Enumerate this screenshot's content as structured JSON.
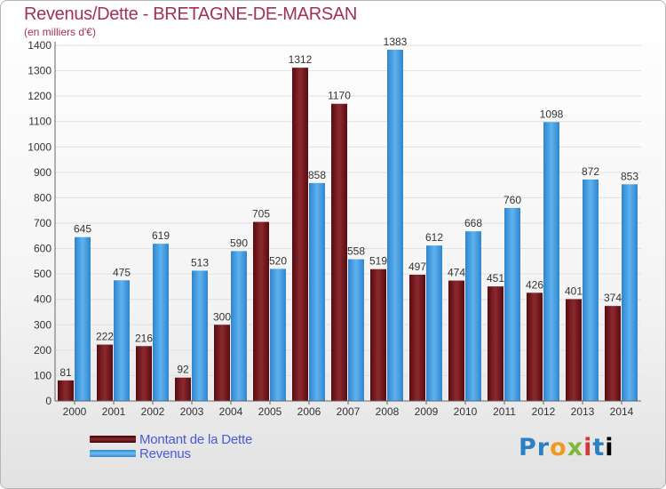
{
  "title": "Revenus/Dette - BRETAGNE-DE-MARSAN",
  "subtitle": "(en milliers d'€)",
  "logo": [
    "P",
    "r",
    "o",
    "x",
    "i",
    "t",
    "i"
  ],
  "colors": {
    "dette": "#6b1118",
    "revenus": "#3b9be0",
    "title": "#a0305e",
    "legend_text": "#4a5ad8"
  },
  "chart_data": {
    "type": "bar",
    "title": "Revenus/Dette - BRETAGNE-DE-MARSAN",
    "ylabel": "(en milliers d'€)",
    "xlabel": "",
    "categories": [
      "2000",
      "2001",
      "2002",
      "2003",
      "2004",
      "2005",
      "2006",
      "2007",
      "2008",
      "2009",
      "2010",
      "2011",
      "2012",
      "2013",
      "2014"
    ],
    "series": [
      {
        "name": "Montant de la Dette",
        "values": [
          81,
          222,
          216,
          92,
          300,
          705,
          1312,
          1170,
          519,
          497,
          474,
          451,
          426,
          401,
          374
        ]
      },
      {
        "name": "Revenus",
        "values": [
          645,
          475,
          619,
          513,
          590,
          520,
          858,
          558,
          1383,
          612,
          668,
          760,
          1098,
          872,
          853
        ]
      }
    ],
    "ylim": [
      0,
      1400
    ],
    "yticks": [
      0,
      100,
      200,
      300,
      400,
      500,
      600,
      700,
      800,
      900,
      1000,
      1100,
      1200,
      1300,
      1400
    ],
    "grid": true,
    "legend": "bottom-left"
  }
}
